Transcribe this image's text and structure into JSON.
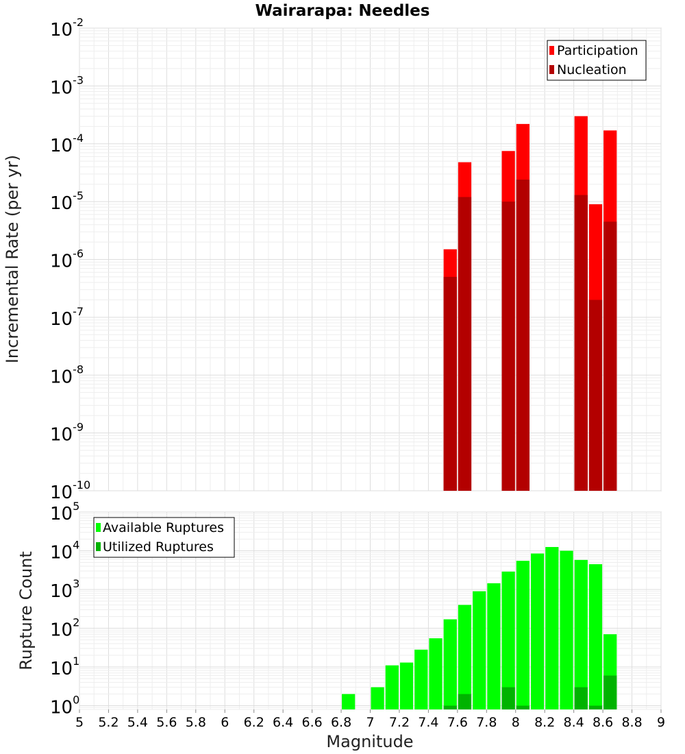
{
  "chart_data": [
    {
      "type": "bar",
      "title": "Wairarapa: Needles",
      "ylabel": "Incremental Rate (per yr)",
      "yscale": "log",
      "ylim": [
        1e-10,
        0.01
      ],
      "xlim": [
        5,
        9
      ],
      "bar_width": 0.1,
      "overlay": true,
      "legend": {
        "position": "top-right",
        "entries": [
          "Participation",
          "Nucleation"
        ]
      },
      "colors": {
        "Participation": "#ff0000",
        "Nucleation": "#b30000"
      },
      "series": [
        {
          "name": "Participation",
          "x": [
            7.55,
            7.65,
            7.95,
            8.05,
            8.45,
            8.55,
            8.65
          ],
          "values": [
            1.5e-06,
            4.8e-05,
            7.5e-05,
            0.00022,
            0.0003,
            9e-06,
            0.00017
          ]
        },
        {
          "name": "Nucleation",
          "x": [
            7.55,
            7.65,
            7.95,
            8.05,
            8.45,
            8.55,
            8.65
          ],
          "values": [
            5e-07,
            1.2e-05,
            1e-05,
            2.4e-05,
            1.3e-05,
            2e-07,
            4.5e-06
          ]
        }
      ],
      "grid": true
    },
    {
      "type": "bar",
      "xlabel": "Magnitude",
      "ylabel": "Rupture Count",
      "yscale": "log",
      "ylim": [
        0.8,
        100000.0
      ],
      "xlim": [
        5,
        9
      ],
      "bar_width": 0.1,
      "overlay": true,
      "legend": {
        "position": "top-left",
        "entries": [
          "Available Ruptures",
          "Utilized Ruptures"
        ]
      },
      "colors": {
        "Available Ruptures": "#00ff00",
        "Utilized Ruptures": "#00b300"
      },
      "series": [
        {
          "name": "Available Ruptures",
          "x": [
            6.85,
            7.05,
            7.15,
            7.25,
            7.35,
            7.45,
            7.55,
            7.65,
            7.75,
            7.85,
            7.95,
            8.05,
            8.15,
            8.25,
            8.35,
            8.45,
            8.55,
            8.65
          ],
          "values": [
            2,
            3,
            11,
            13,
            28,
            55,
            170,
            400,
            900,
            1450,
            2900,
            5500,
            8500,
            12500,
            10000,
            5800,
            4500,
            70
          ]
        },
        {
          "name": "Utilized Ruptures",
          "x": [
            7.55,
            7.65,
            7.95,
            8.05,
            8.45,
            8.55,
            8.65
          ],
          "values": [
            1,
            2,
            3,
            1,
            3,
            1,
            6
          ]
        }
      ],
      "grid": true
    }
  ],
  "x_ticks": [
    "5",
    "5.2",
    "5.4",
    "5.6",
    "5.8",
    "6",
    "6.2",
    "6.4",
    "6.6",
    "6.8",
    "7",
    "7.2",
    "7.4",
    "7.6",
    "7.8",
    "8",
    "8.2",
    "8.4",
    "8.6",
    "8.8",
    "9"
  ],
  "top_y_ticks": [
    {
      "base": "10",
      "exp": "-2"
    },
    {
      "base": "10",
      "exp": "-3"
    },
    {
      "base": "10",
      "exp": "-4"
    },
    {
      "base": "10",
      "exp": "-5"
    },
    {
      "base": "10",
      "exp": "-6"
    },
    {
      "base": "10",
      "exp": "-7"
    },
    {
      "base": "10",
      "exp": "-8"
    },
    {
      "base": "10",
      "exp": "-9"
    },
    {
      "base": "10",
      "exp": "-10"
    }
  ],
  "bottom_y_ticks": [
    {
      "base": "10",
      "exp": "5"
    },
    {
      "base": "10",
      "exp": "4"
    },
    {
      "base": "10",
      "exp": "3"
    },
    {
      "base": "10",
      "exp": "2"
    },
    {
      "base": "10",
      "exp": "1"
    },
    {
      "base": "10",
      "exp": "0"
    }
  ]
}
